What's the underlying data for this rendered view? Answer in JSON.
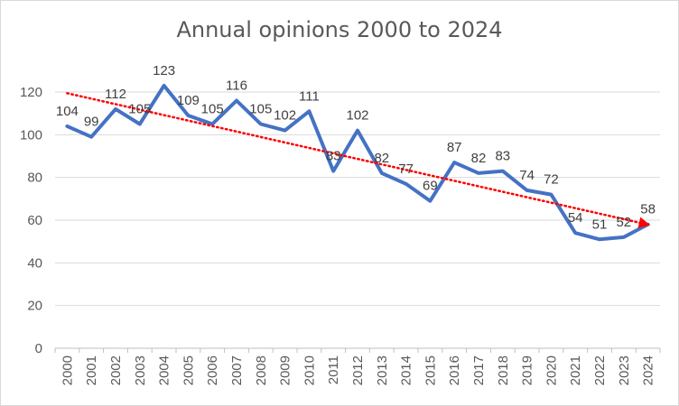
{
  "chart_data": {
    "type": "line",
    "title": "Annual opinions 2000 to 2024",
    "xlabel": "",
    "ylabel": "",
    "categories": [
      "2000",
      "2001",
      "2002",
      "2003",
      "2004",
      "2005",
      "2006",
      "2007",
      "2008",
      "2009",
      "2010",
      "2011",
      "2012",
      "2013",
      "2014",
      "2015",
      "2016",
      "2017",
      "2018",
      "2019",
      "2020",
      "2021",
      "2022",
      "2023",
      "2024"
    ],
    "series": [
      {
        "values": [
          104,
          99,
          112,
          105,
          123,
          109,
          105,
          116,
          105,
          102,
          111,
          83,
          102,
          82,
          77,
          69,
          87,
          82,
          83,
          74,
          72,
          54,
          51,
          52,
          58
        ],
        "color": "#4472c4",
        "data_labels": true
      }
    ],
    "trendline": {
      "type": "linear",
      "color": "#ff0000",
      "style": "dotted",
      "arrow_end": true
    },
    "ylim": [
      0,
      120
    ],
    "yticks": [
      0,
      20,
      40,
      60,
      80,
      100,
      120
    ],
    "grid": true,
    "legend": "none"
  }
}
